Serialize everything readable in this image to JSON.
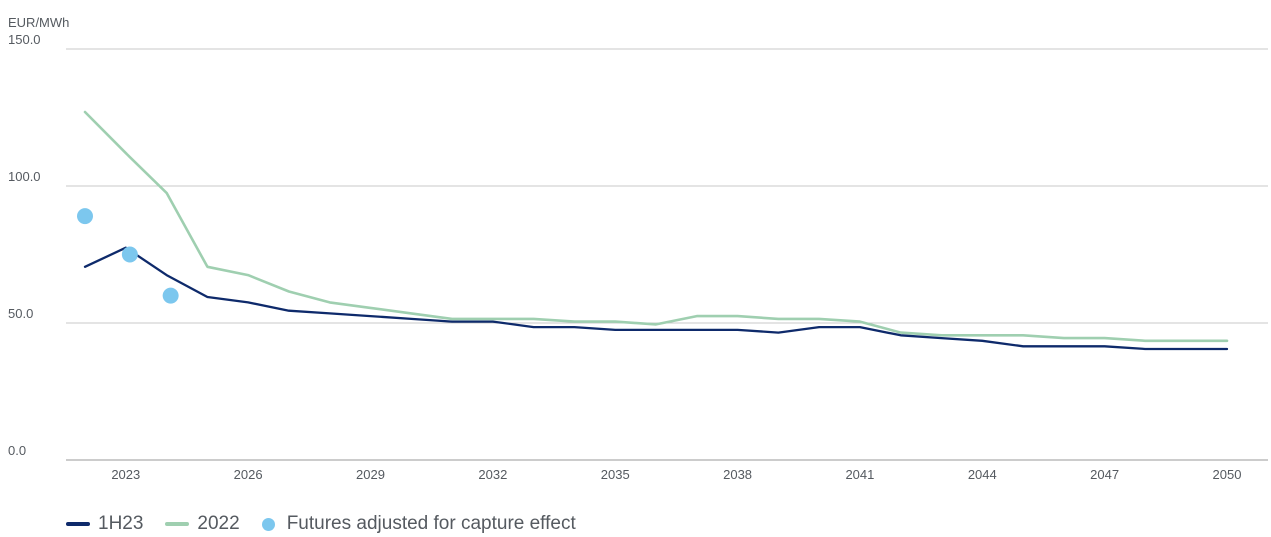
{
  "chart_data": {
    "type": "line",
    "unit_label": "EUR/MWh",
    "ylim": [
      0,
      150
    ],
    "yticks": [
      "0.0",
      "50.0",
      "100.0",
      "150.0"
    ],
    "xlim": [
      2022,
      2050
    ],
    "xticks": [
      "2023",
      "2026",
      "2029",
      "2032",
      "2035",
      "2038",
      "2041",
      "2044",
      "2047",
      "2050"
    ],
    "grid": "horizontal",
    "legend_position": "bottom-left",
    "series": [
      {
        "name": "1H23",
        "color": "#0e2a6b",
        "style": "line",
        "x": [
          2022,
          2023,
          2024,
          2025,
          2026,
          2027,
          2028,
          2029,
          2030,
          2031,
          2032,
          2033,
          2034,
          2035,
          2036,
          2037,
          2038,
          2039,
          2040,
          2041,
          2042,
          2043,
          2044,
          2045,
          2046,
          2047,
          2048,
          2049,
          2050
        ],
        "values": [
          70.5,
          77.5,
          67.5,
          59.5,
          57.5,
          54.5,
          53.5,
          52.5,
          51.5,
          50.5,
          50.5,
          48.5,
          48.5,
          47.5,
          47.5,
          47.5,
          47.5,
          46.5,
          48.5,
          48.5,
          45.5,
          44.5,
          43.5,
          41.5,
          41.5,
          41.5,
          40.5,
          40.5,
          40.5
        ]
      },
      {
        "name": "2022",
        "color": "#9fcfb0",
        "style": "line",
        "x": [
          2022,
          2023,
          2024,
          2025,
          2026,
          2027,
          2028,
          2029,
          2030,
          2031,
          2032,
          2033,
          2034,
          2035,
          2036,
          2037,
          2038,
          2039,
          2040,
          2041,
          2042,
          2043,
          2044,
          2045,
          2046,
          2047,
          2048,
          2049,
          2050
        ],
        "values": [
          127,
          112,
          97.5,
          70.5,
          67.5,
          61.5,
          57.5,
          55.5,
          53.5,
          51.5,
          51.5,
          51.5,
          50.5,
          50.5,
          49.5,
          52.5,
          52.5,
          51.5,
          51.5,
          50.5,
          46.5,
          45.5,
          45.5,
          45.5,
          44.5,
          44.5,
          43.5,
          43.5,
          43.5
        ]
      },
      {
        "name": "Futures adjusted for capture effect",
        "color": "#7cc7ee",
        "style": "dot",
        "x": [
          2022,
          2023.1,
          2024.1
        ],
        "values": [
          89,
          75,
          60
        ]
      }
    ]
  }
}
